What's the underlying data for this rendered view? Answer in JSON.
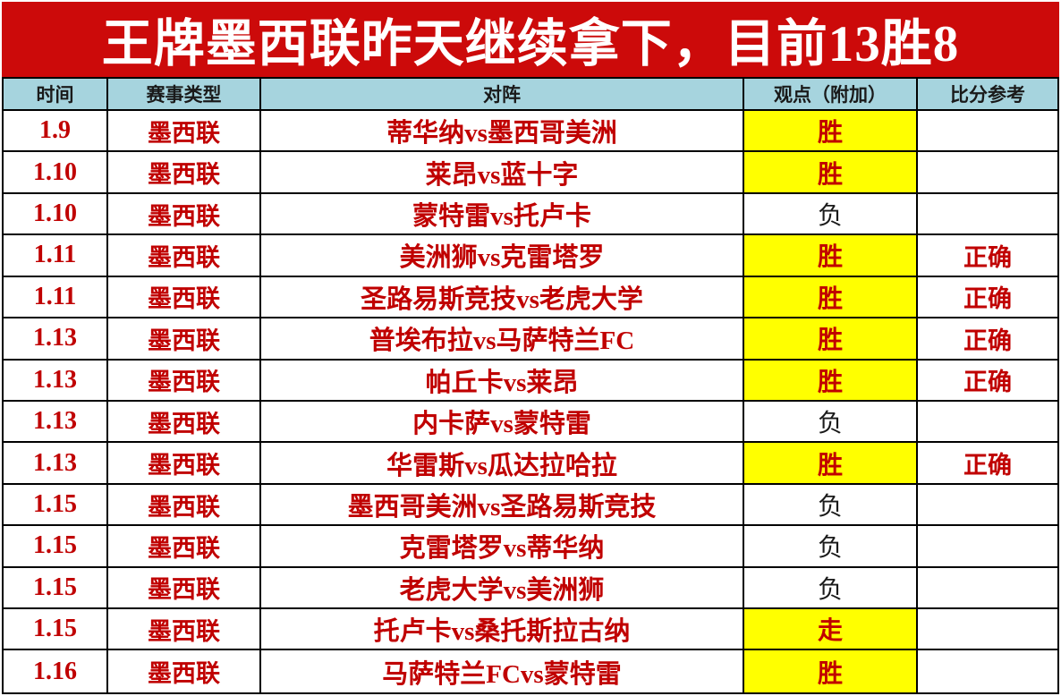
{
  "title": "王牌墨西联昨天继续拿下，目前13胜8",
  "table": {
    "headers": [
      "时间",
      "赛事类型",
      "对阵",
      "观点（附加）",
      "比分参考"
    ],
    "rows": [
      {
        "date": "1.9",
        "league": "墨西联",
        "match": "蒂华纳vs墨西哥美洲",
        "opinion": "胜",
        "highlight": true,
        "result": ""
      },
      {
        "date": "1.10",
        "league": "墨西联",
        "match": "莱昂vs蓝十字",
        "opinion": "胜",
        "highlight": true,
        "result": ""
      },
      {
        "date": "1.10",
        "league": "墨西联",
        "match": "蒙特雷vs托卢卡",
        "opinion": "负",
        "highlight": false,
        "result": ""
      },
      {
        "date": "1.11",
        "league": "墨西联",
        "match": "美洲狮vs克雷塔罗",
        "opinion": "胜",
        "highlight": true,
        "result": "正确"
      },
      {
        "date": "1.11",
        "league": "墨西联",
        "match": "圣路易斯竞技vs老虎大学",
        "opinion": "胜",
        "highlight": true,
        "result": "正确"
      },
      {
        "date": "1.13",
        "league": "墨西联",
        "match": "普埃布拉vs马萨特兰FC",
        "opinion": "胜",
        "highlight": true,
        "result": "正确"
      },
      {
        "date": "1.13",
        "league": "墨西联",
        "match": "帕丘卡vs莱昂",
        "opinion": "胜",
        "highlight": true,
        "result": "正确"
      },
      {
        "date": "1.13",
        "league": "墨西联",
        "match": "内卡萨vs蒙特雷",
        "opinion": "负",
        "highlight": false,
        "result": ""
      },
      {
        "date": "1.13",
        "league": "墨西联",
        "match": "华雷斯vs瓜达拉哈拉",
        "opinion": "胜",
        "highlight": true,
        "result": "正确"
      },
      {
        "date": "1.15",
        "league": "墨西联",
        "match": "墨西哥美洲vs圣路易斯竞技",
        "opinion": "负",
        "highlight": false,
        "result": ""
      },
      {
        "date": "1.15",
        "league": "墨西联",
        "match": "克雷塔罗vs蒂华纳",
        "opinion": "负",
        "highlight": false,
        "result": ""
      },
      {
        "date": "1.15",
        "league": "墨西联",
        "match": "老虎大学vs美洲狮",
        "opinion": "负",
        "highlight": false,
        "result": ""
      },
      {
        "date": "1.15",
        "league": "墨西联",
        "match": "托卢卡vs桑托斯拉古纳",
        "opinion": "走",
        "highlight": true,
        "result": ""
      },
      {
        "date": "1.16",
        "league": "墨西联",
        "match": "马萨特兰FCvs蒙特雷",
        "opinion": "胜",
        "highlight": true,
        "result": ""
      }
    ]
  },
  "colors": {
    "title_bg": "#cc0a0a",
    "title_text": "#ffffff",
    "header_bg": "#a6d4de",
    "highlight_bg": "#ffff00",
    "red_text": "#c00000",
    "dark_text": "#1a1a1a",
    "border": "#000000"
  }
}
